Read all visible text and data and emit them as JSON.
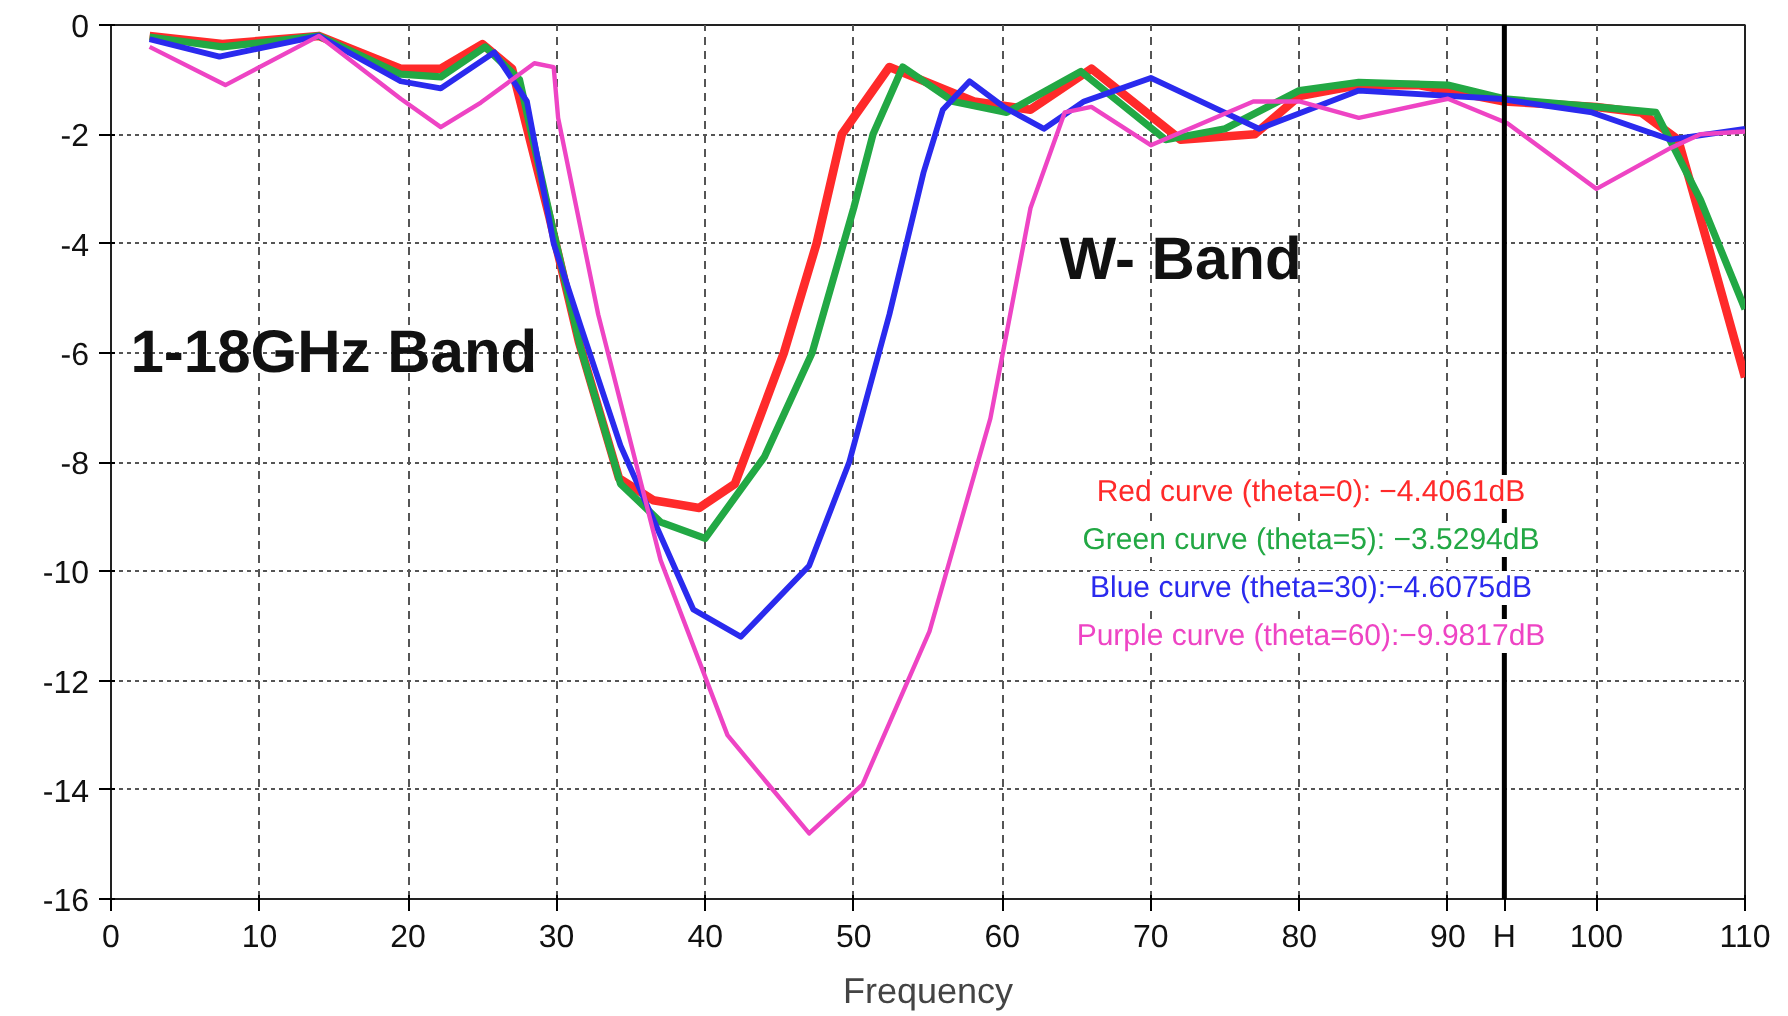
{
  "chart_data": {
    "type": "line",
    "xlabel": "Frequency",
    "annotations": [
      "1-18GHz Band",
      "W- Band"
    ],
    "xlim": [
      0,
      110
    ],
    "ylim": [
      -16,
      0
    ],
    "xticks": [
      0,
      10,
      20,
      30,
      40,
      50,
      60,
      70,
      80,
      90,
      {
        "value": 93.8,
        "label": "H"
      },
      100,
      110
    ],
    "yticks": [
      0,
      -2,
      -4,
      -6,
      -8,
      -10,
      -12,
      -14,
      -16
    ],
    "grid": true,
    "legend": "right",
    "marker": "none",
    "line_style": "solid",
    "ref_lines": [
      {
        "axis": "x",
        "value": 93.8,
        "color": "#000000"
      }
    ],
    "series": [
      {
        "name": "Red curve (theta=0): −4.4061dB",
        "color": "#ff2a2a",
        "x": [
          2.6,
          7.5,
          14,
          19.5,
          22.2,
          25,
          27,
          29.5,
          31.5,
          34.2,
          36.5,
          39.6,
          42,
          45.3,
          47.5,
          49.2,
          52.4,
          58.1,
          61.9,
          66,
          72,
          77,
          80,
          84,
          88,
          90,
          93.8,
          100,
          103,
          105.5,
          108,
          110
        ],
        "values": [
          -0.2,
          -0.35,
          -0.2,
          -0.8,
          -0.8,
          -0.35,
          -0.8,
          -3.5,
          -5.8,
          -8.3,
          -8.7,
          -8.84,
          -8.4,
          -6,
          -4,
          -2,
          -0.77,
          -1.4,
          -1.55,
          -0.8,
          -2.1,
          -2,
          -1.3,
          -1.1,
          -1.1,
          -1.2,
          -1.4,
          -1.5,
          -1.6,
          -2.1,
          -4.5,
          -6.45
        ]
      },
      {
        "name": "Green curve (theta=5): −3.5294dB",
        "color": "#22a844",
        "x": [
          2.6,
          7.5,
          14,
          19.5,
          22.2,
          25.2,
          27.5,
          29.8,
          31.6,
          34.3,
          37,
          40,
          44,
          47.2,
          50,
          51.3,
          53.3,
          56.7,
          60.3,
          65.3,
          71,
          75,
          80,
          84,
          90,
          93.8,
          100,
          104,
          107,
          110
        ],
        "values": [
          -0.22,
          -0.4,
          -0.2,
          -0.9,
          -0.95,
          -0.4,
          -1,
          -3.8,
          -5.9,
          -8.4,
          -9.1,
          -9.4,
          -7.9,
          -6,
          -3.35,
          -2,
          -0.77,
          -1.4,
          -1.6,
          -0.85,
          -2.1,
          -1.9,
          -1.2,
          -1.05,
          -1.1,
          -1.35,
          -1.5,
          -1.6,
          -3.2,
          -5.2
        ]
      },
      {
        "name": "Blue curve (theta=30):−4.6075dB",
        "color": "#2a2aee",
        "x": [
          2.6,
          7.3,
          14,
          19.5,
          22.2,
          25.8,
          28,
          29.8,
          31.6,
          34.3,
          39.2,
          42.4,
          47,
          49.7,
          52.4,
          54.7,
          56,
          57.8,
          60.1,
          62.8,
          65.5,
          70,
          77.3,
          84,
          93.4,
          99.7,
          105,
          110
        ],
        "values": [
          -0.26,
          -0.58,
          -0.2,
          -1.03,
          -1.16,
          -0.5,
          -1.4,
          -4,
          -5.5,
          -7.7,
          -10.7,
          -11.2,
          -9.9,
          -8,
          -5.3,
          -2.7,
          -1.55,
          -1.03,
          -1.5,
          -1.9,
          -1.4,
          -0.97,
          -1.9,
          -1.2,
          -1.35,
          -1.6,
          -2.1,
          -1.9
        ]
      },
      {
        "name": "Purple curve (theta=60):−9.9817dB",
        "color": "#ee44c4",
        "x": [
          2.6,
          7.7,
          14,
          19.5,
          22.2,
          24.9,
          28.5,
          29.8,
          30.1,
          32.8,
          37,
          41.5,
          47,
          50.6,
          55.1,
          59.2,
          61.9,
          64.2,
          66,
          70,
          76.9,
          80,
          84,
          90,
          94,
          100,
          105,
          107,
          110
        ],
        "values": [
          -0.4,
          -1.1,
          -0.2,
          -1.35,
          -1.87,
          -1.42,
          -0.7,
          -0.77,
          -1.7,
          -5.3,
          -9.8,
          -13,
          -14.8,
          -13.9,
          -11.1,
          -7.2,
          -3.35,
          -1.6,
          -1.5,
          -2.2,
          -1.4,
          -1.4,
          -1.7,
          -1.35,
          -1.8,
          -3,
          -2.25,
          -2,
          -1.95
        ]
      }
    ]
  }
}
